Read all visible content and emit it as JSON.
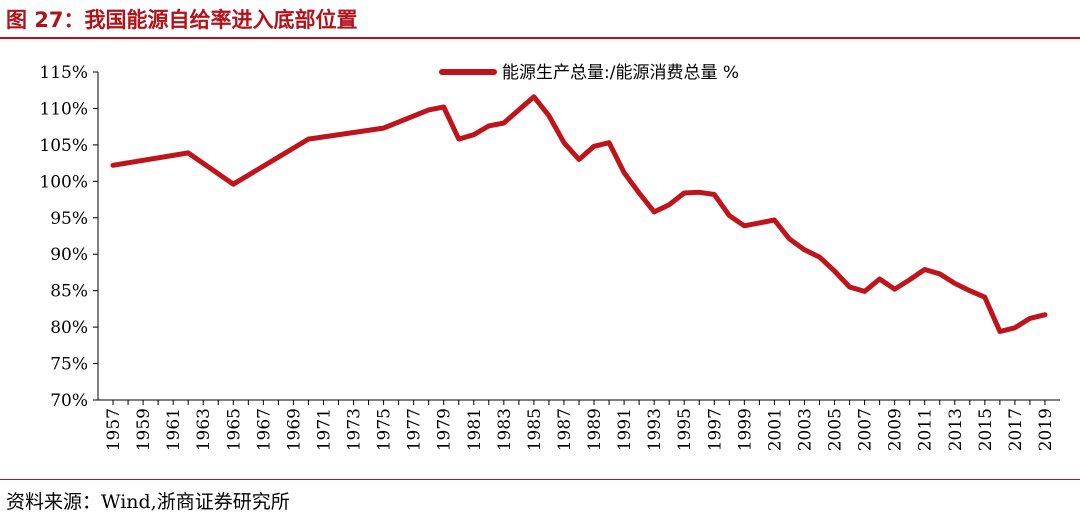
{
  "header": {
    "title": "图 27：我国能源自给率进入底部位置"
  },
  "footer": {
    "source": "资料来源：Wind,浙商证券研究所"
  },
  "chart_data": {
    "type": "line",
    "title": "",
    "xlabel": "",
    "ylabel": "",
    "ylim": [
      70,
      115
    ],
    "yticks": [
      "70%",
      "75%",
      "80%",
      "85%",
      "90%",
      "95%",
      "100%",
      "105%",
      "110%",
      "115%"
    ],
    "xticks": [
      "1957",
      "1959",
      "1961",
      "1963",
      "1965",
      "1967",
      "1969",
      "1971",
      "1973",
      "1975",
      "1977",
      "1979",
      "1981",
      "1983",
      "1985",
      "1987",
      "1989",
      "1991",
      "1993",
      "1995",
      "1997",
      "1999",
      "2001",
      "2003",
      "2005",
      "2007",
      "2009",
      "2011",
      "2013",
      "2015",
      "2017",
      "2019"
    ],
    "legend": "top-right",
    "grid": false,
    "series": [
      {
        "name": "能源生产总量:/能源消费总量 %",
        "color": "#c0141c",
        "x": [
          1957,
          1962,
          1965,
          1970,
          1975,
          1978,
          1979,
          1980,
          1981,
          1982,
          1983,
          1985,
          1986,
          1987,
          1988,
          1989,
          1990,
          1991,
          1992,
          1993,
          1994,
          1995,
          1996,
          1997,
          1998,
          1999,
          2000,
          2001,
          2002,
          2003,
          2004,
          2005,
          2006,
          2007,
          2008,
          2009,
          2010,
          2011,
          2012,
          2013,
          2014,
          2015,
          2016,
          2017,
          2018,
          2019
        ],
        "values": [
          102.2,
          103.9,
          99.6,
          105.8,
          107.3,
          109.8,
          110.2,
          105.8,
          106.4,
          107.6,
          108.0,
          111.6,
          109.0,
          105.3,
          103.0,
          104.8,
          105.3,
          101.2,
          98.4,
          95.8,
          96.8,
          98.4,
          98.5,
          98.2,
          95.3,
          93.9,
          94.3,
          94.7,
          92.1,
          90.6,
          89.6,
          87.7,
          85.5,
          84.9,
          86.6,
          85.2,
          86.5,
          87.9,
          87.3,
          86.0,
          85.0,
          84.1,
          79.4,
          79.9,
          81.2,
          81.7
        ]
      }
    ]
  }
}
